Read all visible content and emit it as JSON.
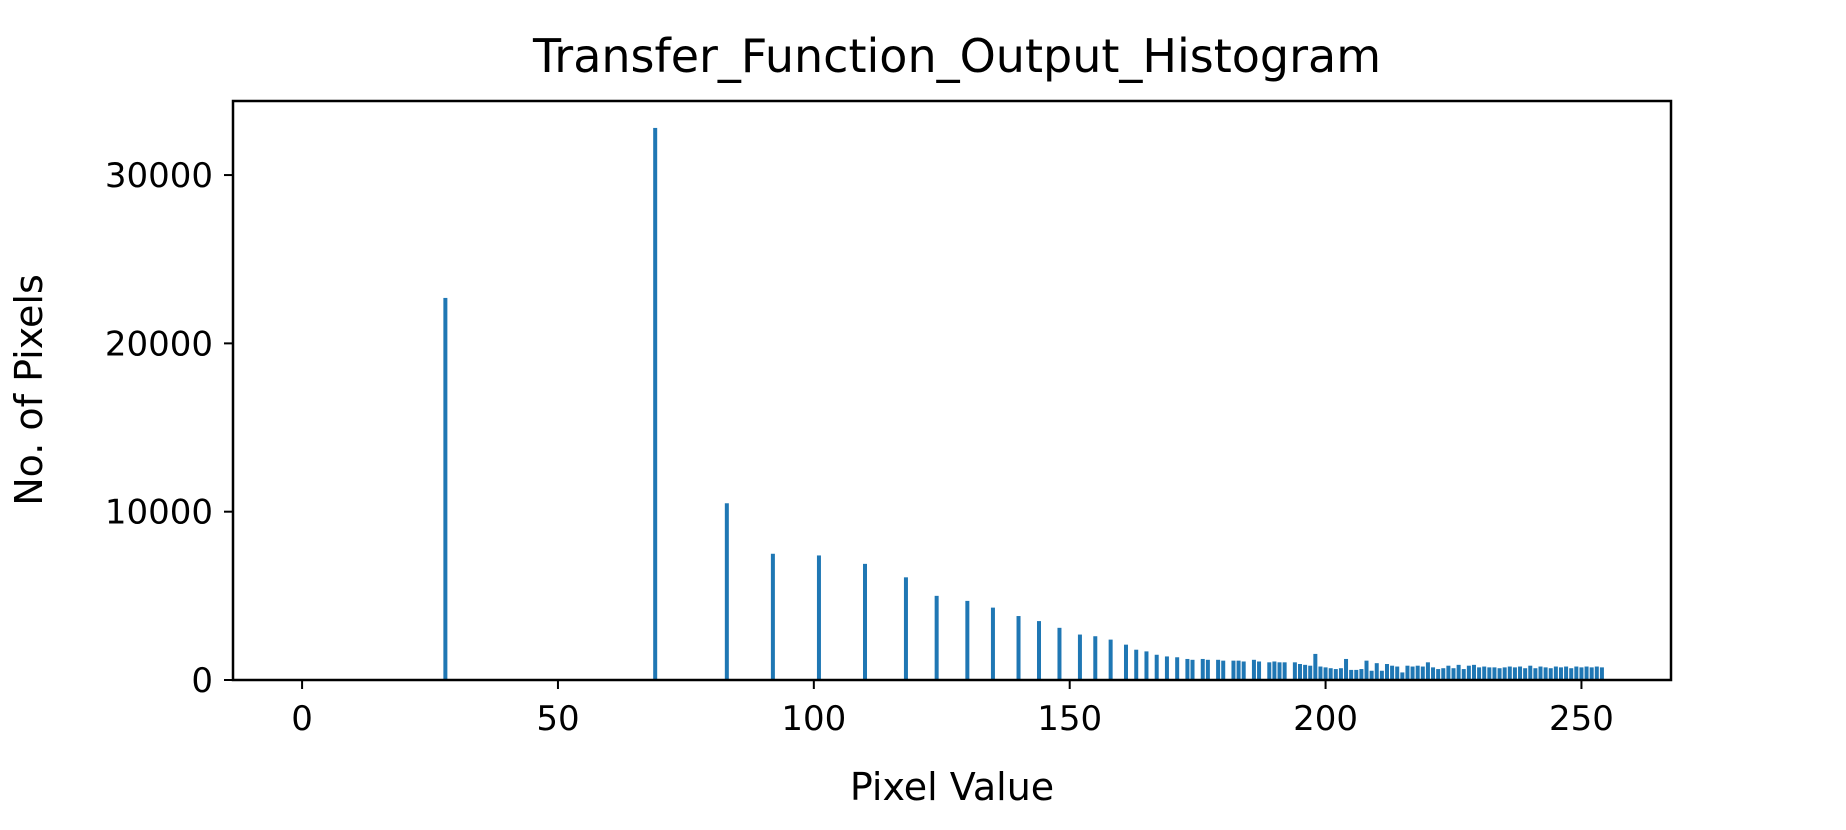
{
  "chart_data": {
    "type": "bar",
    "title": "Transfer_Function_Output_Histogram",
    "xlabel": "Pixel Value",
    "ylabel": "No. of Pixels",
    "xlim": [
      -13.5,
      267.5
    ],
    "ylim": [
      0,
      34400
    ],
    "xticks": [
      0,
      50,
      100,
      150,
      200,
      250
    ],
    "xtick_labels": [
      "0",
      "50",
      "100",
      "150",
      "200",
      "250"
    ],
    "yticks": [
      0,
      10000,
      20000,
      30000
    ],
    "ytick_labels": [
      "0",
      "10000",
      "20000",
      "30000"
    ],
    "grid": false,
    "legend": "none",
    "bar_color": "#1f77b4",
    "x": [
      28,
      69,
      83,
      92,
      101,
      110,
      118,
      124,
      130,
      135,
      140,
      144,
      148,
      152,
      155,
      158,
      161,
      163,
      165,
      167,
      169,
      171,
      173,
      174,
      176,
      177,
      179,
      180,
      182,
      183,
      184,
      186,
      187,
      189,
      190,
      191,
      192,
      194,
      195,
      196,
      197,
      198,
      199,
      200,
      201,
      202,
      203,
      204,
      205,
      206,
      207,
      208,
      209,
      210,
      211,
      212,
      213,
      214,
      215,
      216,
      217,
      218,
      219,
      220,
      221,
      222,
      223,
      224,
      225,
      226,
      227,
      228,
      229,
      230,
      231,
      232,
      233,
      234,
      235,
      236,
      237,
      238,
      239,
      240,
      241,
      242,
      243,
      244,
      245,
      246,
      247,
      248,
      249,
      250,
      251,
      252,
      253,
      254
    ],
    "values": [
      22700,
      32800,
      10500,
      7500,
      7400,
      6900,
      6100,
      5000,
      4700,
      4300,
      3800,
      3500,
      3100,
      2700,
      2600,
      2400,
      2100,
      1800,
      1700,
      1500,
      1400,
      1350,
      1250,
      1200,
      1250,
      1200,
      1200,
      1150,
      1150,
      1150,
      1100,
      1200,
      1100,
      1050,
      1100,
      1050,
      1050,
      1050,
      950,
      900,
      850,
      1550,
      800,
      750,
      700,
      650,
      700,
      1250,
      600,
      600,
      650,
      1150,
      550,
      1000,
      550,
      950,
      850,
      800,
      450,
      850,
      800,
      850,
      800,
      1050,
      750,
      650,
      700,
      850,
      700,
      900,
      650,
      850,
      900,
      750,
      800,
      750,
      750,
      700,
      750,
      800,
      750,
      800,
      700,
      850,
      700,
      800,
      750,
      700,
      800,
      750,
      800,
      700,
      800,
      750,
      800,
      750,
      800,
      750
    ]
  }
}
